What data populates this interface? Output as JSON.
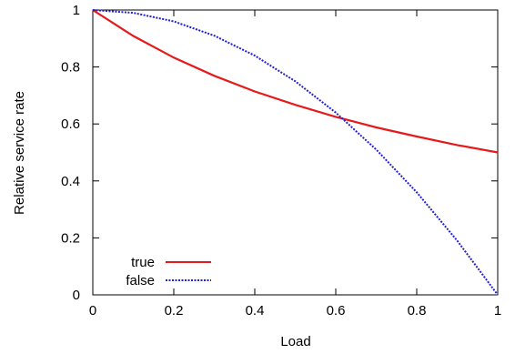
{
  "chart_data": {
    "type": "line",
    "title": "",
    "xlabel": "Load",
    "ylabel": "Relative service rate",
    "xlim": [
      0,
      1
    ],
    "ylim": [
      0,
      1
    ],
    "xticks": [
      0,
      0.2,
      0.4,
      0.6,
      0.8,
      1
    ],
    "yticks": [
      0,
      0.2,
      0.4,
      0.6,
      0.8,
      1
    ],
    "xtick_labels": [
      "0",
      "0.2",
      "0.4",
      "0.6",
      "0.8",
      "1"
    ],
    "ytick_labels": [
      "0",
      "0.2",
      "0.4",
      "0.6",
      "0.8",
      "1"
    ],
    "grid": false,
    "legend_position": "bottom-left",
    "series": [
      {
        "name": "true",
        "color": "#e41a1c",
        "style": "solid",
        "x": [
          0,
          0.1,
          0.2,
          0.3,
          0.4,
          0.5,
          0.6,
          0.7,
          0.8,
          0.9,
          1.0
        ],
        "y": [
          1.0,
          0.909,
          0.833,
          0.769,
          0.714,
          0.667,
          0.625,
          0.588,
          0.556,
          0.526,
          0.5
        ]
      },
      {
        "name": "false",
        "color": "#1f1fd6",
        "style": "dotted",
        "x": [
          0,
          0.1,
          0.2,
          0.3,
          0.4,
          0.5,
          0.6,
          0.7,
          0.8,
          0.9,
          1.0
        ],
        "y": [
          1.0,
          0.99,
          0.96,
          0.91,
          0.84,
          0.75,
          0.64,
          0.51,
          0.36,
          0.19,
          0.0
        ]
      }
    ]
  }
}
